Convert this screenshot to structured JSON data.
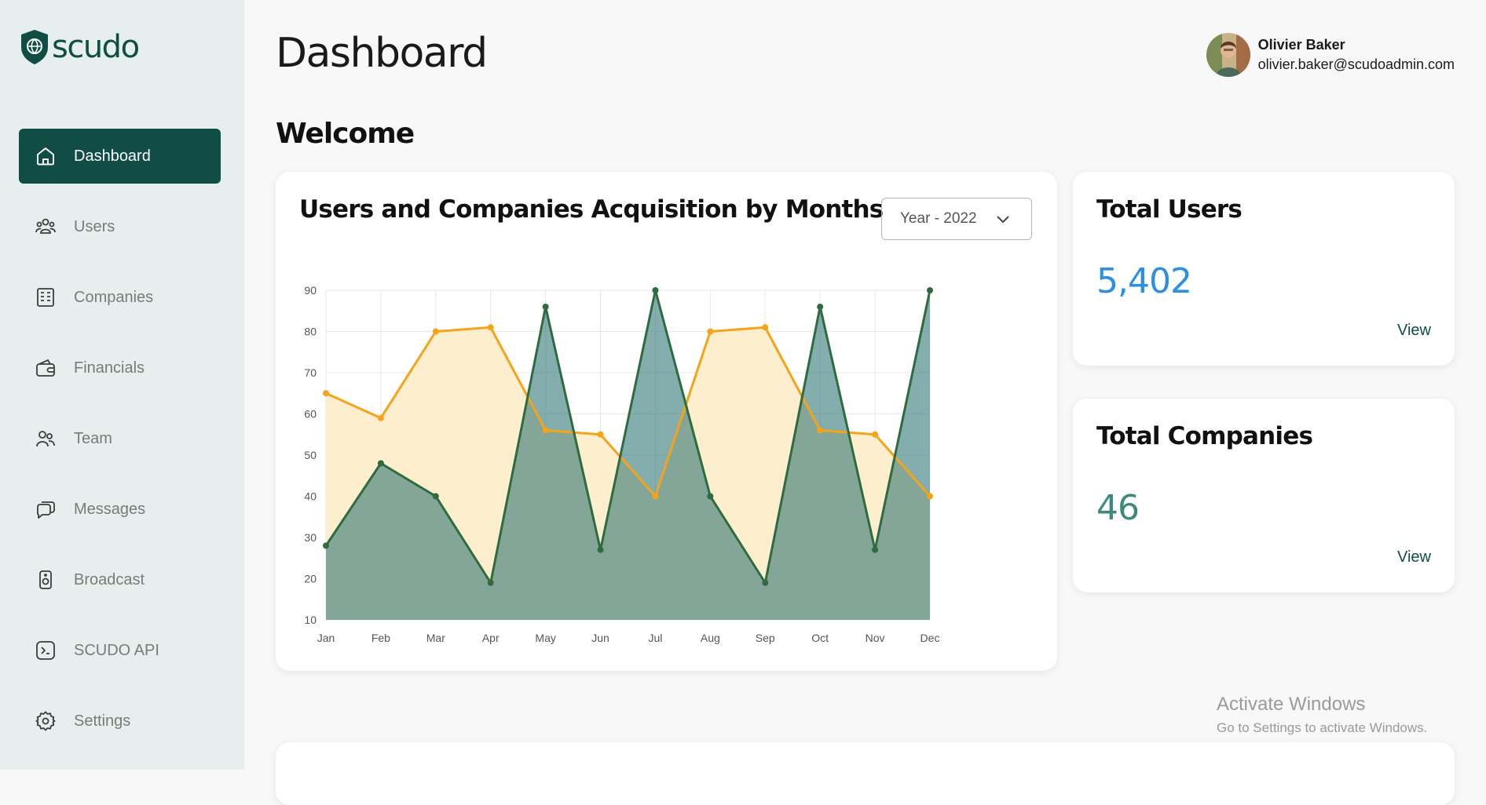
{
  "app": {
    "logo_text": "scudo"
  },
  "sidebar": {
    "items": [
      {
        "label": "Dashboard",
        "icon": "home-icon",
        "active": true
      },
      {
        "label": "Users",
        "icon": "users-icon"
      },
      {
        "label": "Companies",
        "icon": "building-icon"
      },
      {
        "label": "Financials",
        "icon": "wallet-icon"
      },
      {
        "label": "Team",
        "icon": "team-icon"
      },
      {
        "label": "Messages",
        "icon": "messages-icon"
      },
      {
        "label": "Broadcast",
        "icon": "speaker-icon"
      },
      {
        "label": "SCUDO API",
        "icon": "terminal-icon"
      },
      {
        "label": "Settings",
        "icon": "gear-icon"
      }
    ]
  },
  "header": {
    "title": "Dashboard",
    "user": {
      "name": "Olivier Baker",
      "email": "olivier.baker@scudoadmin.com"
    }
  },
  "main": {
    "welcome": "Welcome",
    "chart_card": {
      "title": "Users and Companies Acquisition by Months",
      "year_select": "Year - 2022"
    },
    "total_users": {
      "title": "Total Users",
      "value": "5,402",
      "link": "View",
      "color": "#2d8fe0"
    },
    "total_companies": {
      "title": "Total Companies",
      "value": "46",
      "link": "View",
      "color": "#3d8a7c"
    }
  },
  "watermark": {
    "line1": "Activate Windows",
    "line2": "Go to Settings to activate Windows."
  },
  "colors": {
    "brand": "#0f4d45",
    "sidebar_bg": "#e6efed",
    "orange": "#f5a41a",
    "green": "#2e6b3e"
  },
  "chart_data": {
    "type": "area",
    "categories": [
      "Jan",
      "Feb",
      "Mar",
      "Apr",
      "May",
      "Jun",
      "Jul",
      "Aug",
      "Sep",
      "Oct",
      "Nov",
      "Dec"
    ],
    "ylim": [
      10,
      90
    ],
    "yticks": [
      10,
      20,
      30,
      40,
      50,
      60,
      70,
      80,
      90
    ],
    "grid": true,
    "series": [
      {
        "values": [
          65,
          59,
          80,
          81,
          56,
          55,
          40,
          80,
          81,
          56,
          55,
          40
        ],
        "color": "#f5a41a",
        "fill": "#fdecc9"
      },
      {
        "values": [
          28,
          48,
          40,
          19,
          86,
          27,
          90,
          40,
          19,
          86,
          27,
          90
        ],
        "color": "#2e6b3e",
        "fill": "#1f6b6b"
      }
    ]
  }
}
